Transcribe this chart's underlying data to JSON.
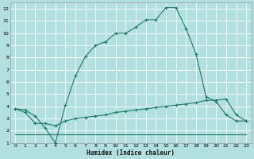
{
  "title": "",
  "xlabel": "Humidex (Indice chaleur)",
  "bg_color": "#b2e0e0",
  "grid_color": "#ffffff",
  "line_color": "#1a7a6a",
  "xlim": [
    -0.5,
    23.5
  ],
  "ylim": [
    1,
    12.5
  ],
  "xticks": [
    0,
    1,
    2,
    3,
    4,
    5,
    6,
    7,
    8,
    9,
    10,
    11,
    12,
    13,
    14,
    15,
    16,
    17,
    18,
    19,
    20,
    21,
    22,
    23
  ],
  "yticks": [
    1,
    2,
    3,
    4,
    5,
    6,
    7,
    8,
    9,
    10,
    11,
    12
  ],
  "curve1_x": [
    0,
    1,
    2,
    3,
    4,
    5,
    6,
    7,
    8,
    9,
    10,
    11,
    12,
    13,
    14,
    15,
    16,
    17,
    18,
    19,
    20,
    21,
    22,
    23
  ],
  "curve1_y": [
    3.8,
    3.7,
    3.2,
    2.2,
    1.0,
    4.1,
    6.5,
    8.1,
    9.0,
    9.3,
    10.0,
    10.0,
    10.5,
    11.1,
    11.1,
    12.1,
    12.1,
    10.4,
    8.3,
    4.8,
    4.4,
    3.3,
    2.8,
    2.8
  ],
  "curve2_x": [
    0,
    1,
    2,
    3,
    4,
    5,
    6,
    7,
    8,
    9,
    10,
    11,
    12,
    13,
    14,
    15,
    16,
    17,
    18,
    19,
    20,
    21,
    22,
    23
  ],
  "curve2_y": [
    1.7,
    1.7,
    1.7,
    1.7,
    1.7,
    1.7,
    1.7,
    1.7,
    1.7,
    1.7,
    1.7,
    1.7,
    1.7,
    1.7,
    1.7,
    1.7,
    1.7,
    1.7,
    1.7,
    1.7,
    1.7,
    1.7,
    1.7,
    1.7
  ],
  "curve3_x": [
    0,
    1,
    2,
    3,
    4,
    5,
    6,
    7,
    8,
    9,
    10,
    11,
    12,
    13,
    14,
    15,
    16,
    17,
    18,
    19,
    20,
    21,
    22,
    23
  ],
  "curve3_y": [
    3.8,
    3.5,
    2.6,
    2.6,
    2.4,
    2.8,
    3.0,
    3.1,
    3.2,
    3.3,
    3.5,
    3.6,
    3.7,
    3.8,
    3.9,
    4.0,
    4.1,
    4.2,
    4.3,
    4.5,
    4.5,
    4.6,
    3.3,
    2.8
  ]
}
